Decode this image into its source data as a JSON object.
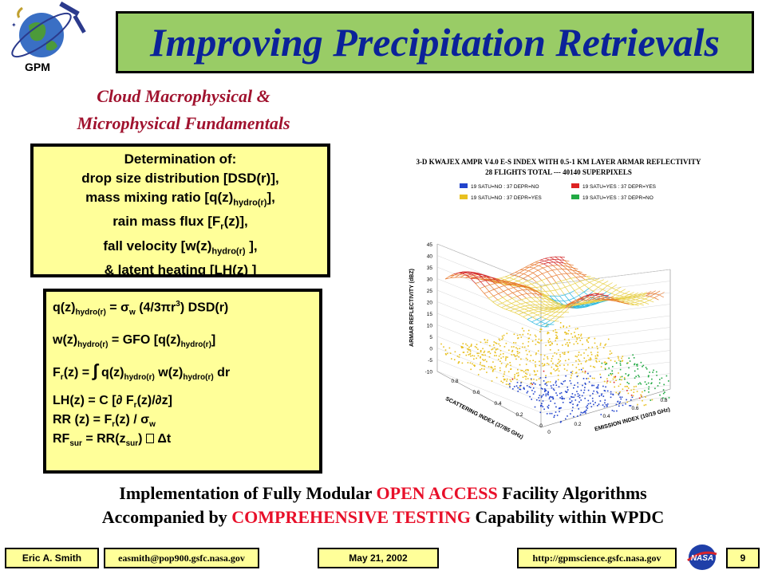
{
  "logo": {
    "text": "GPM"
  },
  "title": "Improving Precipitation Retrievals",
  "subtitle": {
    "line1": "Cloud Macrophysical &",
    "line2": "Microphysical Fundamentals"
  },
  "determination": {
    "heading": "Determination of:",
    "l1": "drop size distribution [DSD(r)],",
    "l2a": "mass mixing ratio [q(z)",
    "l2sub": "hydro(r)",
    "l2b": "],",
    "l3a": "rain mass flux [F",
    "l3sub": "r",
    "l3b": "(z)],",
    "l4a": "fall velocity [w(z)",
    "l4sub": "hydro(r)",
    "l4b": " ],",
    "l5": "& latent heating [LH(z) ]"
  },
  "equations": {
    "e1a": "q(z)",
    "e1sub": "hydro(r)",
    "e1b": " = ",
    "e1sig": "σ",
    "e1sigsub": "w",
    "e1c": " (4/3",
    "e1pi": "π",
    "e1d": "r",
    "e1sup": "3",
    "e1e": ") DSD(r)",
    "e2a": "w(z)",
    "e2sub": "hydro(r)",
    "e2b": " = GFO [q(z)",
    "e2sub2": "hydro(r)",
    "e2c": "]",
    "e3a": "F",
    "e3sub": "r",
    "e3b": "(z) = ",
    "e3int": "∫",
    "e3c": " q(z)",
    "e3sub2": "hydro(r)",
    "e3d": " w(z)",
    "e3sub3": "hydro(r)",
    "e3e": " dr",
    "e4": "LH(z) = C [∂ F",
    "e4sub": "r",
    "e4b": "(z)/∂z]",
    "e5a": "RR (z) = F",
    "e5sub": "r",
    "e5b": "(z) / ",
    "e5sig": "σ",
    "e5sigsub": "w",
    "e6a": "RF",
    "e6sub": "sur",
    "e6b": " = RR(z",
    "e6sub2": "sur",
    "e6c": ") ",
    "e6d": " Δt"
  },
  "chart": {
    "title1": "3-D KWAJEX AMPR V4.0 E-S INDEX WITH 0.5-1 KM LAYER ARMAR REFLECTIVITY",
    "title2": "28 FLIGHTS TOTAL --- 40140 SUPERPIXELS",
    "legend": [
      {
        "label": "19 SATU=NO : 37 DEPR=NO",
        "color": "#2244cc"
      },
      {
        "label": "19 SATU=YES : 37 DEPR=YES",
        "color": "#dd2222"
      },
      {
        "label": "19 SATU=NO : 37 DEPR=YES",
        "color": "#e8c020"
      },
      {
        "label": "19 SATU=YES : 37 DEPR=NO",
        "color": "#22aa44"
      }
    ],
    "zlabel": "ARMAR REFLECTIVITY (dBZ)",
    "xlabel": "SCATTERING INDEX (37/85 GHz)",
    "ylabel": "EMISSION INDEX (10/19 GHz)",
    "zticks": [
      "45",
      "40",
      "35",
      "30",
      "25",
      "20",
      "15",
      "10",
      "5",
      "0",
      "-5",
      "-10"
    ],
    "xticks": [
      "0.8",
      "0.6",
      "0.4",
      "0.2",
      "0"
    ],
    "yticks": [
      "0",
      "0.2",
      "0.4",
      "0.6",
      "0.8"
    ]
  },
  "bottom": {
    "l1a": "Implementation of Fully Modular ",
    "l1b": "OPEN ACCESS",
    "l1c": " Facility Algorithms",
    "l2a": "Accompanied by ",
    "l2b": "COMPREHENSIVE TESTING",
    "l2c": " Capability within WPDC"
  },
  "footer": {
    "author": "Eric A. Smith",
    "email": "easmith@pop900.gsfc.nasa.gov",
    "date": "May 21, 2002",
    "url": "http://gpmscience.gsfc.nasa.gov",
    "page": "9",
    "nasa": "NASA"
  }
}
